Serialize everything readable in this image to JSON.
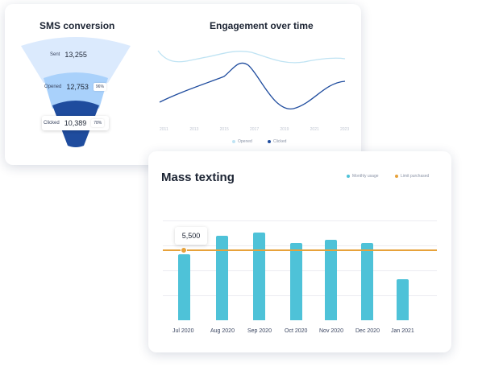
{
  "sms": {
    "title": "SMS conversion",
    "stages": [
      {
        "label": "Sent",
        "value": "13,255",
        "pct": ""
      },
      {
        "label": "Opened",
        "value": "12,753",
        "pct": "96%"
      },
      {
        "label": "Clicked",
        "value": "10,389",
        "pct": "78%"
      }
    ],
    "colors": {
      "sent": "#dbeafd",
      "opened": "#a9d1fb",
      "clicked": "#1f4c9e"
    }
  },
  "engagement": {
    "title": "Engagement over time",
    "x_ticks": [
      "2011",
      "2013",
      "2015",
      "2017",
      "2019",
      "2021",
      "2023"
    ],
    "legend": {
      "opened": "Opened",
      "clicked": "Clicked"
    },
    "colors": {
      "opened": "#bfe3f3",
      "clicked": "#1f4c9e"
    }
  },
  "mass_texting": {
    "title": "Mass texting",
    "legend": {
      "usage": "Monthly usage",
      "limit": "Limit purchased"
    },
    "tooltip": "5,500",
    "colors": {
      "bar": "#4ec2d8",
      "limit": "#e7a23a"
    }
  },
  "chart_data": [
    {
      "type": "bar",
      "title": "Mass texting",
      "categories": [
        "Jul 2020",
        "Aug 2020",
        "Sep 2020",
        "Oct 2020",
        "Nov 2020",
        "Dec 2020",
        "Jan 2021"
      ],
      "series": [
        {
          "name": "Monthly usage",
          "values": [
            5500,
            7000,
            7300,
            6400,
            6700,
            6400,
            3400
          ]
        },
        {
          "name": "Limit purchased",
          "values": [
            5800,
            5800,
            5800,
            5800,
            5800,
            5800,
            5800
          ]
        }
      ],
      "ylim": [
        0,
        8000
      ],
      "grid": true,
      "legend_position": "top-right"
    },
    {
      "type": "line",
      "title": "Engagement over time",
      "x": [
        "2011",
        "2013",
        "2015",
        "2017",
        "2019",
        "2021",
        "2023"
      ],
      "series": [
        {
          "name": "Opened",
          "values": [
            60,
            52,
            55,
            60,
            55,
            52,
            55
          ]
        },
        {
          "name": "Clicked",
          "values": [
            20,
            30,
            45,
            55,
            18,
            30,
            40
          ]
        }
      ],
      "grid": false,
      "legend_position": "bottom"
    }
  ]
}
